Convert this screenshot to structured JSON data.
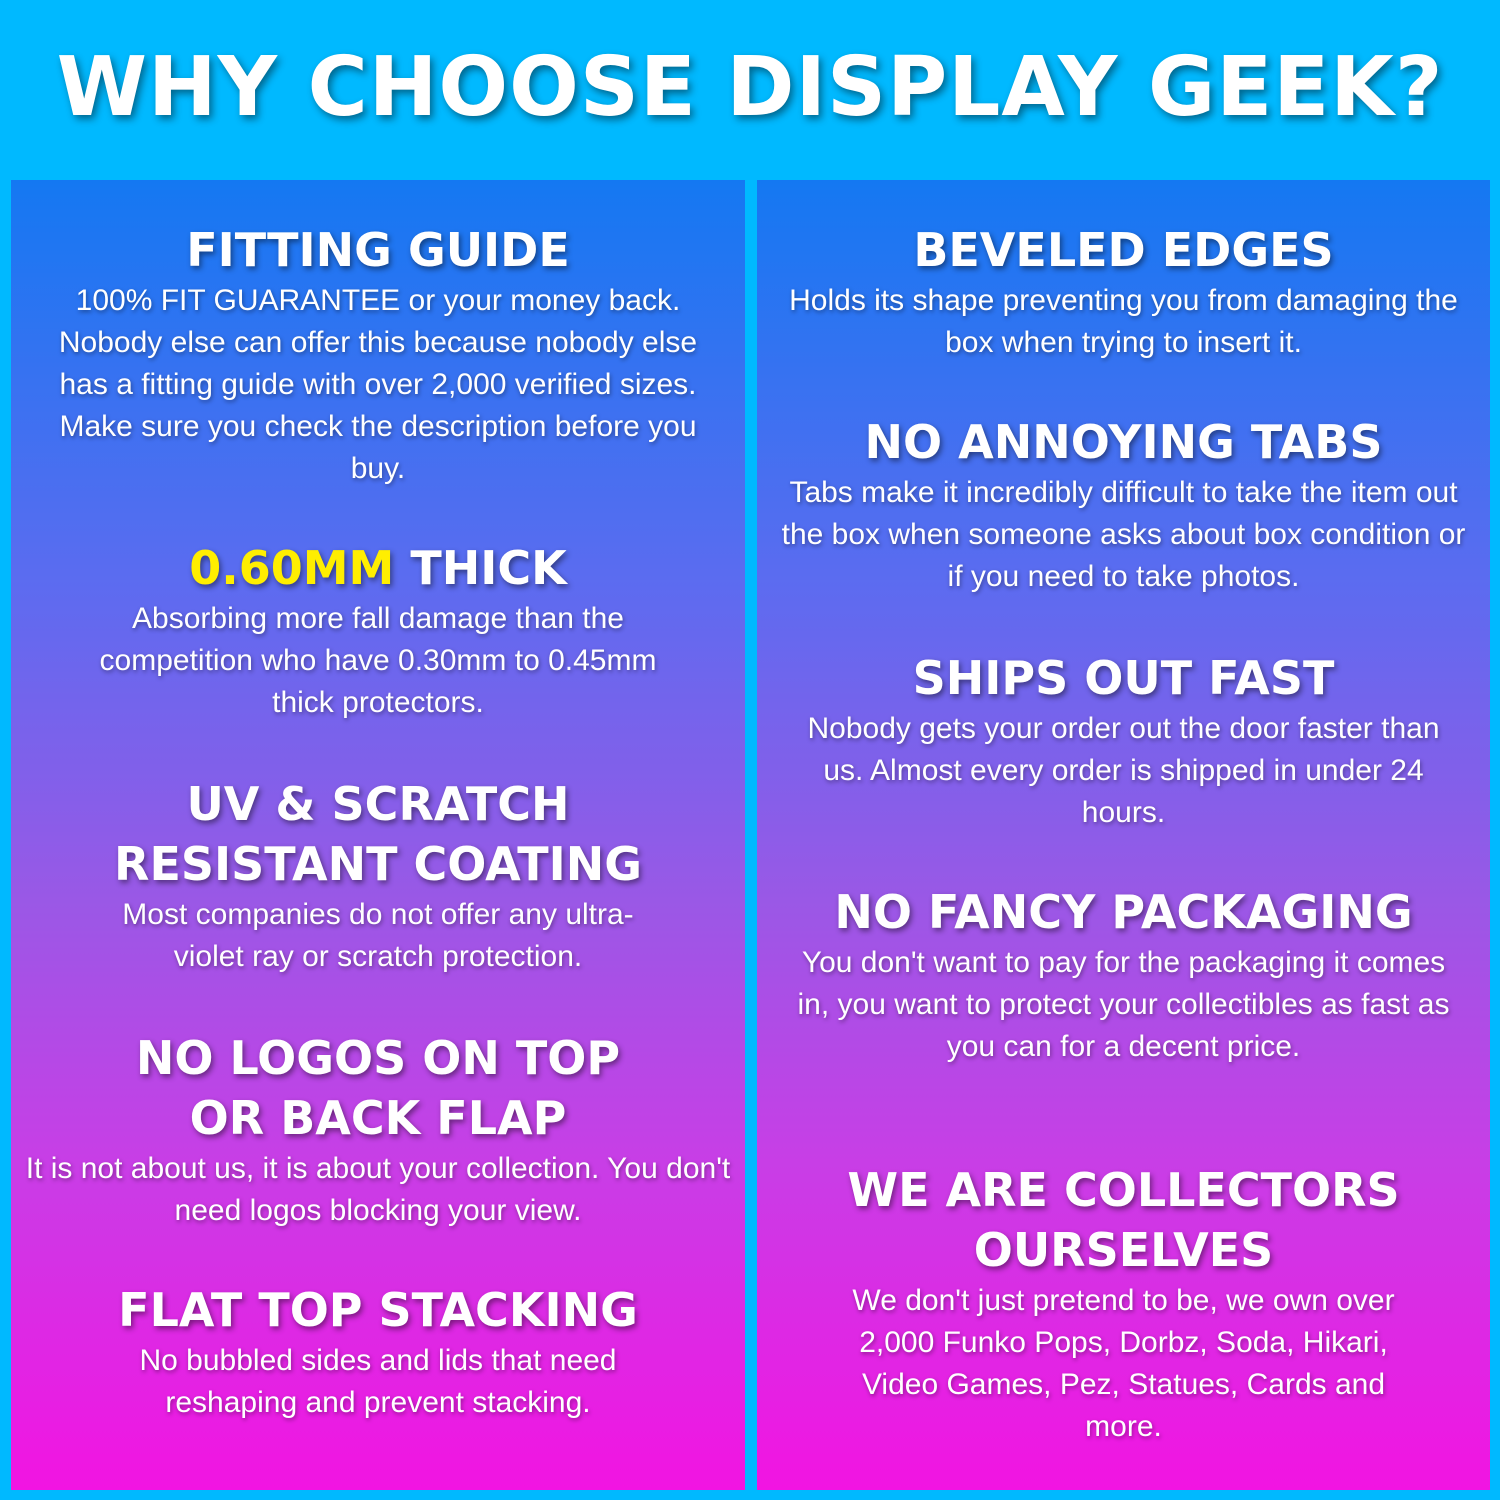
{
  "title": "WHY CHOOSE DISPLAY GEEK?",
  "accent_color": "#ffee00",
  "left": [
    {
      "heading": "FITTING GUIDE",
      "body": "100% FIT GUARANTEE or your money back. Nobody else can offer this because nobody else has a fitting guide with over 2,000 verified sizes. Make sure you check the description before you buy."
    },
    {
      "heading_highlight": "0.60MM",
      "heading": " THICK",
      "body": "Absorbing more fall damage than the competition who have 0.30mm to 0.45mm thick protectors."
    },
    {
      "heading": "UV & SCRATCH RESISTANT COATING",
      "body": "Most companies do not offer any ultra-violet ray or scratch protection."
    },
    {
      "heading": "NO LOGOS ON TOP OR BACK FLAP",
      "body": "It is not about us, it is about your collection. You don't need logos blocking your view."
    },
    {
      "heading": "FLAT TOP STACKING",
      "body": "No bubbled sides and lids that need reshaping and prevent stacking."
    }
  ],
  "right": [
    {
      "heading": "BEVELED EDGES",
      "body": "Holds its shape preventing you from damaging the box when trying to insert it."
    },
    {
      "heading": "NO ANNOYING TABS",
      "body": "Tabs make it incredibly difficult to take the item out the box when someone asks about box condition or if you need to take photos."
    },
    {
      "heading": "SHIPS OUT FAST",
      "body": "Nobody gets your order out the door faster than us. Almost every order is shipped in under 24 hours."
    },
    {
      "heading": "NO FANCY PACKAGING",
      "body": "You don't want to pay for the packaging it comes in, you want to protect your collectibles as fast as you can for a decent price."
    },
    {
      "heading": "WE ARE COLLECTORS OURSELVES",
      "body": "We don't just pretend to be, we own over 2,000 Funko Pops, Dorbz, Soda, Hikari, Video Games, Pez, Statues, Cards and more."
    }
  ]
}
